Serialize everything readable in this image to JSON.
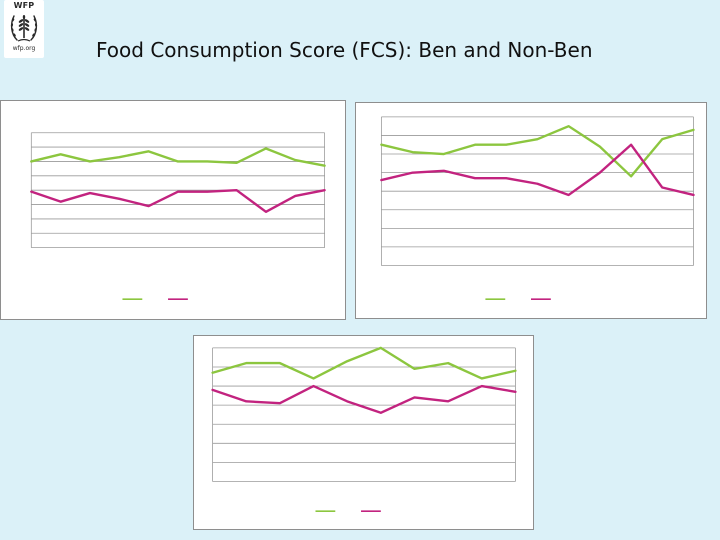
{
  "header": {
    "title": "Food Consumption Score (FCS): Ben and Non-Ben",
    "logo_text": "WFP",
    "logo_url_text": "wfp.org"
  },
  "colors": {
    "background": "#dbf1f8",
    "ben_line": "#8cc63f",
    "non_ben_line": "#c2237f",
    "grid": "#9a9a9a"
  },
  "chart_data": [
    {
      "type": "line",
      "grid": true,
      "legend": "bottom",
      "x": [
        1,
        2,
        3,
        4,
        5,
        6,
        7,
        8,
        9,
        10,
        11
      ],
      "ylim": [
        0,
        8
      ],
      "series": [
        {
          "color": "#8cc63f",
          "values": [
            6.0,
            6.5,
            6.0,
            6.3,
            6.7,
            6.0,
            6.0,
            5.9,
            6.9,
            6.1,
            5.7
          ]
        },
        {
          "color": "#c2237f",
          "values": [
            3.9,
            3.2,
            3.8,
            3.4,
            2.9,
            3.9,
            3.9,
            4.0,
            2.5,
            3.6,
            4.0
          ]
        }
      ]
    },
    {
      "type": "line",
      "grid": true,
      "legend": "bottom",
      "x": [
        1,
        2,
        3,
        4,
        5,
        6,
        7,
        8,
        9,
        10,
        11
      ],
      "ylim": [
        0,
        8
      ],
      "series": [
        {
          "color": "#8cc63f",
          "values": [
            6.5,
            6.1,
            6.0,
            6.5,
            6.5,
            6.8,
            7.5,
            6.4,
            4.8,
            6.8,
            7.3
          ]
        },
        {
          "color": "#c2237f",
          "values": [
            4.6,
            5.0,
            5.1,
            4.7,
            4.7,
            4.4,
            3.8,
            5.0,
            6.5,
            4.2,
            3.8
          ]
        }
      ]
    },
    {
      "type": "line",
      "grid": true,
      "legend": "bottom",
      "x": [
        1,
        2,
        3,
        4,
        5,
        6,
        7,
        8,
        9,
        10
      ],
      "ylim": [
        0,
        7
      ],
      "series": [
        {
          "color": "#8cc63f",
          "values": [
            5.7,
            6.2,
            6.2,
            5.4,
            6.3,
            7.0,
            5.9,
            6.2,
            5.4,
            5.8
          ]
        },
        {
          "color": "#c2237f",
          "values": [
            4.8,
            4.2,
            4.1,
            5.0,
            4.2,
            3.6,
            4.4,
            4.2,
            5.0,
            4.7
          ]
        }
      ]
    }
  ]
}
